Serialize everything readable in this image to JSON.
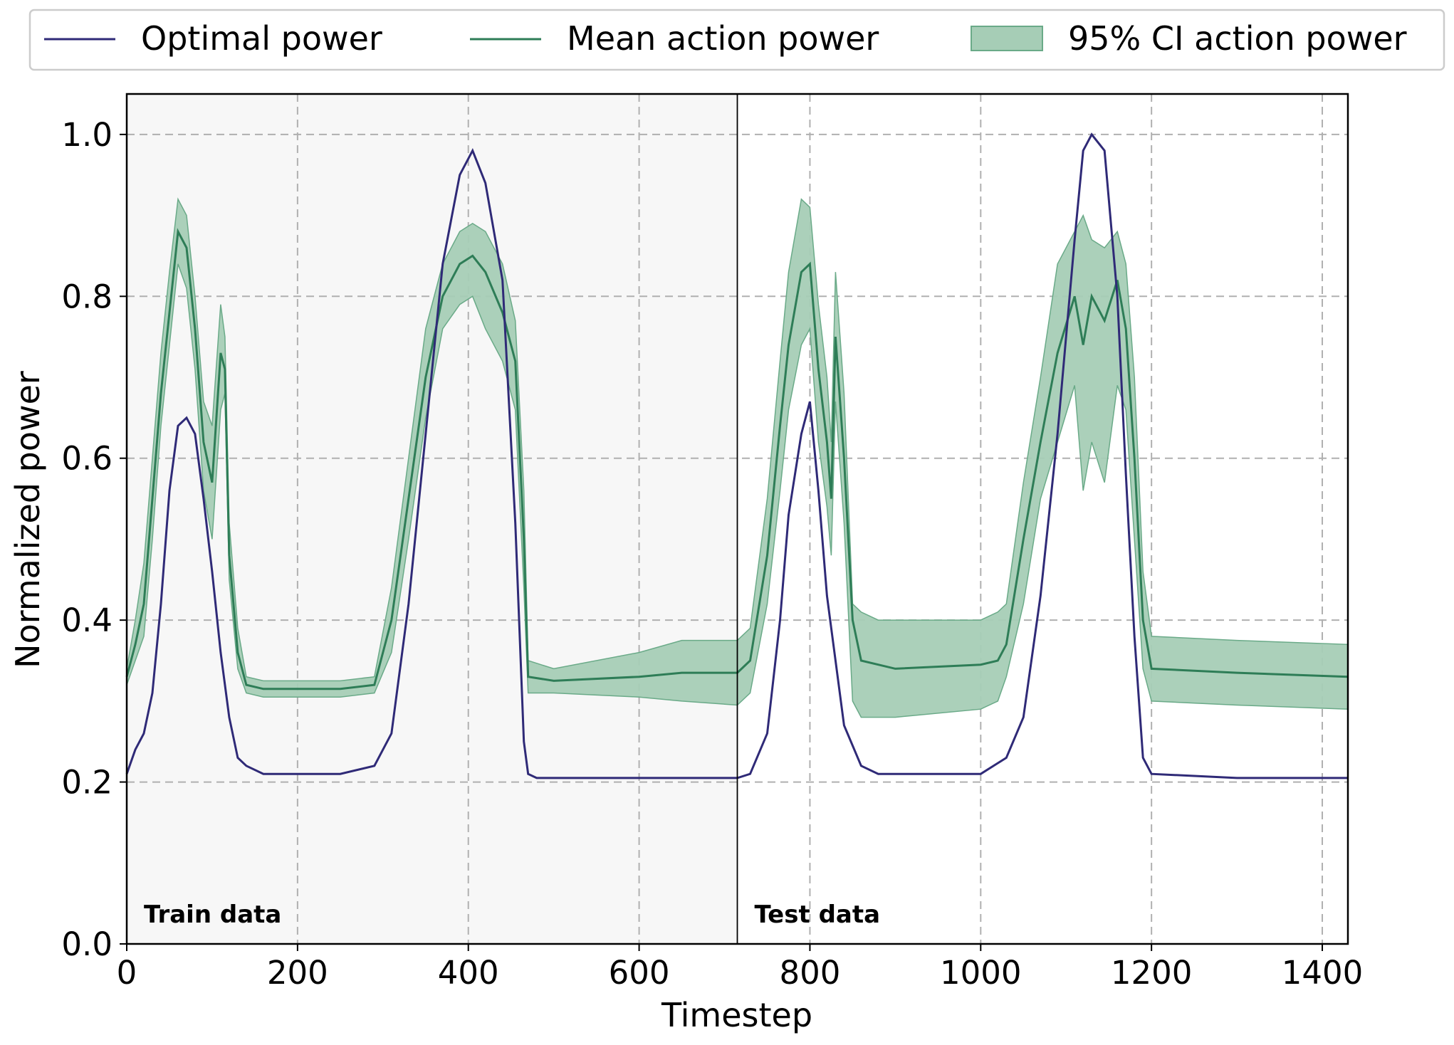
{
  "chart_data": {
    "type": "line",
    "xlabel": "Timestep",
    "ylabel": "Normalized power",
    "xlim": [
      0,
      1430
    ],
    "ylim": [
      0,
      1.05
    ],
    "xticks": [
      0,
      200,
      400,
      600,
      800,
      1000,
      1200,
      1400
    ],
    "yticks": [
      0.0,
      0.2,
      0.4,
      0.6,
      0.8,
      1.0
    ],
    "xtick_labels": [
      "0",
      "200",
      "400",
      "600",
      "800",
      "1000",
      "1200",
      "1400"
    ],
    "ytick_labels": [
      "0.0",
      "0.2",
      "0.4",
      "0.6",
      "0.8",
      "1.0"
    ],
    "grid": true,
    "legend_position": "top, outside, horizontal",
    "split_at": 715,
    "regions": [
      {
        "label": "Train data",
        "x_start": 0,
        "x_end": 715
      },
      {
        "label": "Test data",
        "x_start": 715,
        "x_end": 1430
      }
    ],
    "series": [
      {
        "name": "Optimal power",
        "kind": "line",
        "color": "#2f2a77",
        "x": [
          0,
          10,
          20,
          30,
          40,
          50,
          60,
          70,
          80,
          90,
          100,
          110,
          120,
          130,
          140,
          160,
          200,
          250,
          290,
          310,
          330,
          350,
          370,
          390,
          405,
          420,
          440,
          455,
          465,
          470,
          480,
          600,
          715,
          730,
          750,
          765,
          775,
          790,
          800,
          810,
          820,
          840,
          860,
          880,
          900,
          1000,
          1030,
          1050,
          1070,
          1090,
          1110,
          1120,
          1130,
          1145,
          1160,
          1170,
          1180,
          1190,
          1200,
          1300,
          1430
        ],
        "y": [
          0.21,
          0.24,
          0.26,
          0.31,
          0.42,
          0.56,
          0.64,
          0.65,
          0.63,
          0.55,
          0.46,
          0.36,
          0.28,
          0.23,
          0.22,
          0.21,
          0.21,
          0.21,
          0.22,
          0.26,
          0.42,
          0.63,
          0.84,
          0.95,
          0.98,
          0.94,
          0.82,
          0.52,
          0.25,
          0.21,
          0.205,
          0.205,
          0.205,
          0.21,
          0.26,
          0.4,
          0.53,
          0.63,
          0.67,
          0.56,
          0.43,
          0.27,
          0.22,
          0.21,
          0.21,
          0.21,
          0.23,
          0.28,
          0.43,
          0.63,
          0.87,
          0.98,
          1.0,
          0.98,
          0.8,
          0.58,
          0.38,
          0.23,
          0.21,
          0.205,
          0.205
        ]
      },
      {
        "name": "Mean action power",
        "kind": "line",
        "color": "#2e7d57",
        "x": [
          0,
          10,
          20,
          30,
          40,
          50,
          60,
          70,
          80,
          90,
          100,
          110,
          115,
          120,
          130,
          140,
          160,
          200,
          250,
          290,
          310,
          330,
          350,
          370,
          390,
          405,
          420,
          440,
          455,
          465,
          470,
          500,
          600,
          650,
          715,
          730,
          750,
          765,
          775,
          790,
          800,
          810,
          820,
          825,
          830,
          840,
          850,
          860,
          880,
          900,
          1000,
          1020,
          1030,
          1050,
          1070,
          1090,
          1110,
          1120,
          1130,
          1145,
          1160,
          1170,
          1180,
          1190,
          1200,
          1300,
          1430
        ],
        "y": [
          0.33,
          0.37,
          0.42,
          0.55,
          0.68,
          0.78,
          0.88,
          0.86,
          0.76,
          0.62,
          0.57,
          0.73,
          0.71,
          0.48,
          0.36,
          0.32,
          0.315,
          0.315,
          0.315,
          0.32,
          0.4,
          0.55,
          0.7,
          0.8,
          0.84,
          0.85,
          0.83,
          0.78,
          0.72,
          0.5,
          0.33,
          0.325,
          0.33,
          0.335,
          0.335,
          0.35,
          0.48,
          0.64,
          0.74,
          0.83,
          0.84,
          0.71,
          0.62,
          0.55,
          0.75,
          0.6,
          0.4,
          0.35,
          0.345,
          0.34,
          0.345,
          0.35,
          0.37,
          0.5,
          0.62,
          0.73,
          0.8,
          0.74,
          0.8,
          0.77,
          0.82,
          0.76,
          0.6,
          0.4,
          0.34,
          0.335,
          0.33
        ]
      },
      {
        "name": "95% CI action power",
        "kind": "band",
        "color": "#a6cdb6",
        "edge_color": "#6aaa88",
        "x": [
          0,
          10,
          20,
          30,
          40,
          50,
          60,
          70,
          80,
          90,
          100,
          110,
          115,
          120,
          130,
          140,
          160,
          200,
          250,
          290,
          310,
          330,
          350,
          370,
          390,
          405,
          420,
          440,
          455,
          465,
          470,
          500,
          600,
          650,
          715,
          730,
          750,
          765,
          775,
          790,
          800,
          810,
          820,
          825,
          830,
          840,
          850,
          860,
          880,
          900,
          1000,
          1020,
          1030,
          1050,
          1070,
          1090,
          1110,
          1120,
          1130,
          1145,
          1160,
          1170,
          1180,
          1190,
          1200,
          1300,
          1430
        ],
        "lower": [
          0.32,
          0.35,
          0.38,
          0.5,
          0.64,
          0.74,
          0.84,
          0.81,
          0.71,
          0.56,
          0.5,
          0.66,
          0.68,
          0.45,
          0.34,
          0.31,
          0.305,
          0.305,
          0.305,
          0.31,
          0.36,
          0.5,
          0.65,
          0.76,
          0.79,
          0.8,
          0.76,
          0.72,
          0.66,
          0.44,
          0.31,
          0.31,
          0.305,
          0.3,
          0.295,
          0.31,
          0.42,
          0.56,
          0.66,
          0.74,
          0.76,
          0.62,
          0.54,
          0.48,
          0.67,
          0.52,
          0.3,
          0.28,
          0.28,
          0.28,
          0.29,
          0.3,
          0.33,
          0.42,
          0.55,
          0.62,
          0.69,
          0.56,
          0.62,
          0.57,
          0.69,
          0.66,
          0.5,
          0.34,
          0.3,
          0.295,
          0.29
        ],
        "upper": [
          0.34,
          0.4,
          0.47,
          0.6,
          0.73,
          0.83,
          0.92,
          0.9,
          0.8,
          0.67,
          0.64,
          0.79,
          0.75,
          0.52,
          0.39,
          0.33,
          0.325,
          0.325,
          0.325,
          0.33,
          0.44,
          0.6,
          0.76,
          0.84,
          0.88,
          0.89,
          0.88,
          0.84,
          0.77,
          0.56,
          0.35,
          0.34,
          0.36,
          0.375,
          0.375,
          0.39,
          0.55,
          0.72,
          0.83,
          0.92,
          0.91,
          0.79,
          0.7,
          0.62,
          0.83,
          0.68,
          0.42,
          0.41,
          0.4,
          0.4,
          0.4,
          0.41,
          0.42,
          0.57,
          0.7,
          0.84,
          0.88,
          0.9,
          0.87,
          0.86,
          0.88,
          0.84,
          0.7,
          0.46,
          0.38,
          0.375,
          0.37
        ]
      }
    ]
  }
}
